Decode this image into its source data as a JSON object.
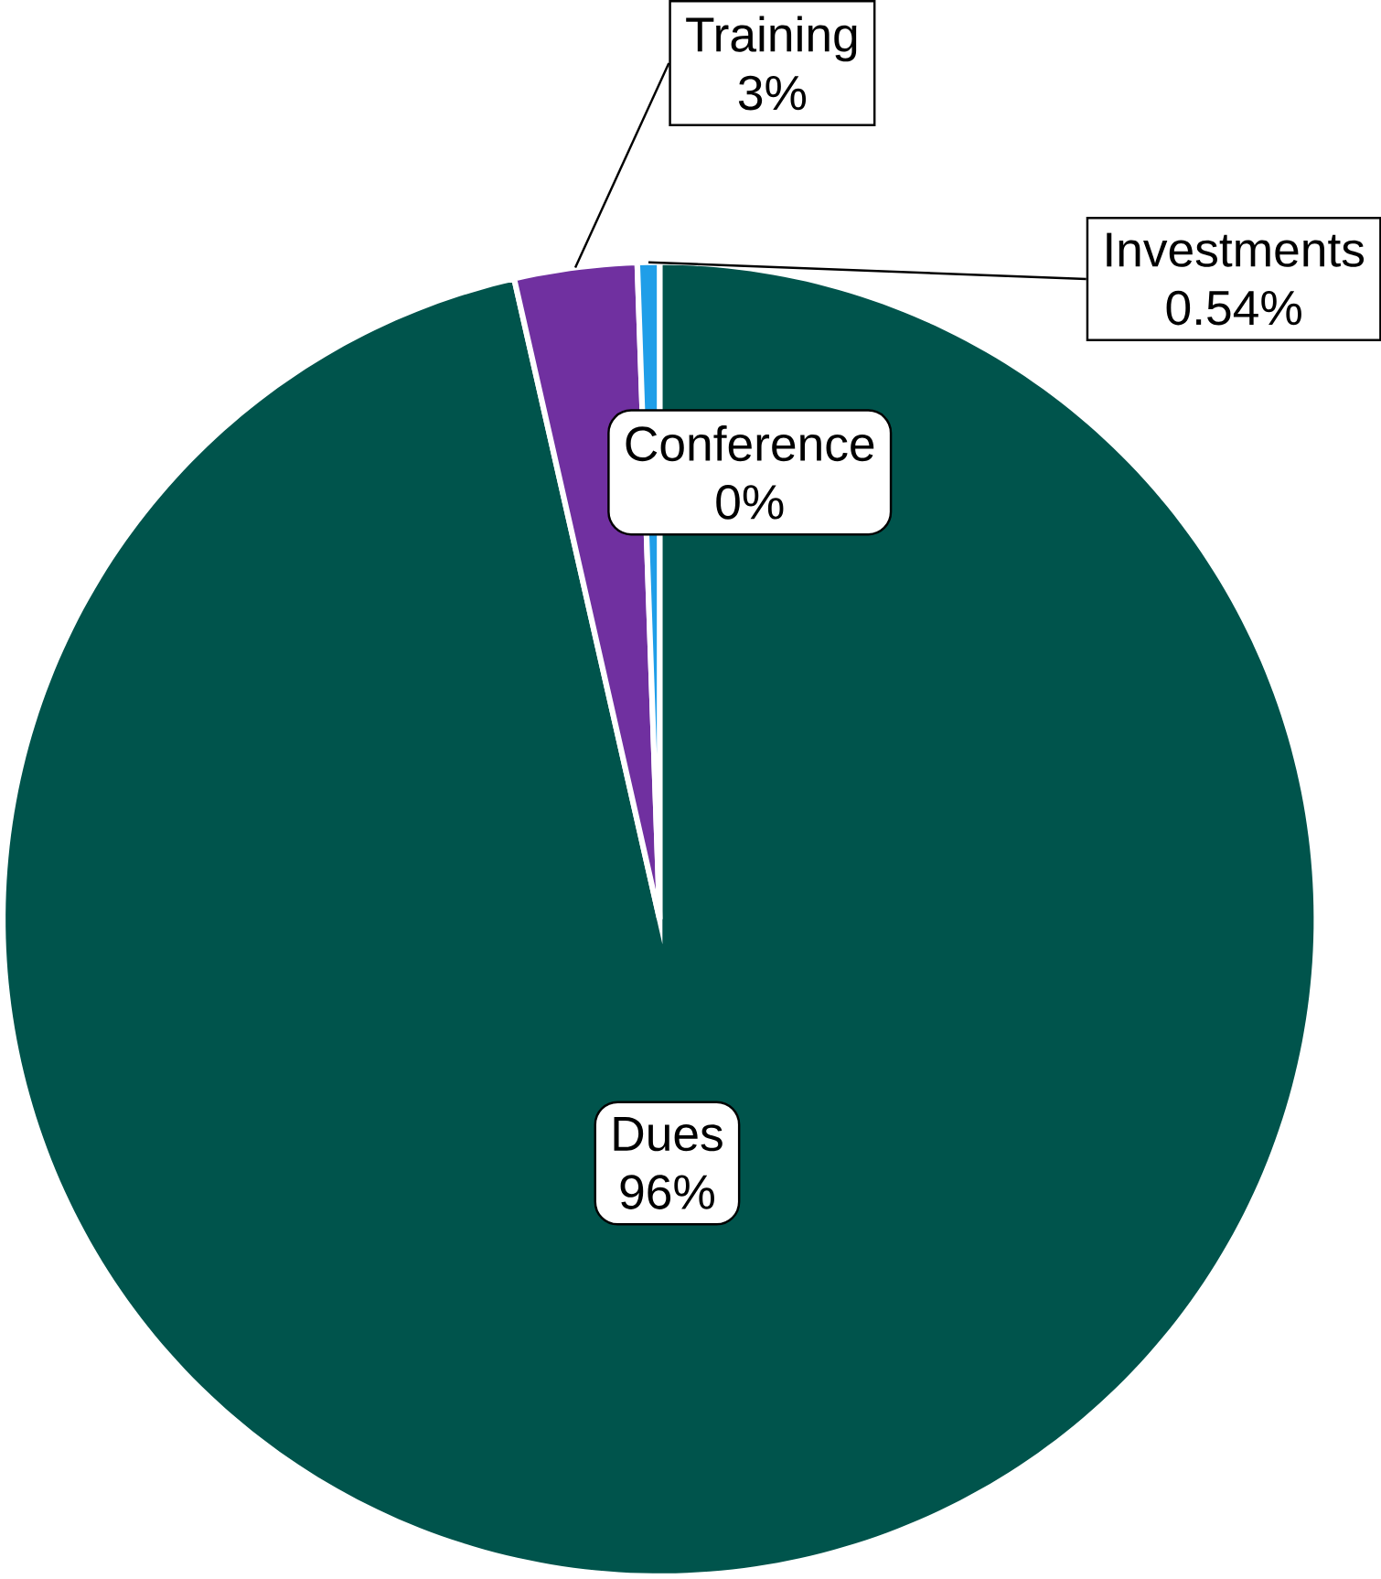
{
  "chart_data": {
    "type": "pie",
    "categories": [
      "Dues",
      "Training",
      "Investments",
      "Conference"
    ],
    "values": [
      96,
      3,
      0.54,
      0
    ],
    "value_labels": [
      "96%",
      "3%",
      "0.54%",
      "0%"
    ],
    "colors": [
      "#00544c",
      "#7030a0",
      "#1f9ee8",
      "#ffffff"
    ]
  }
}
